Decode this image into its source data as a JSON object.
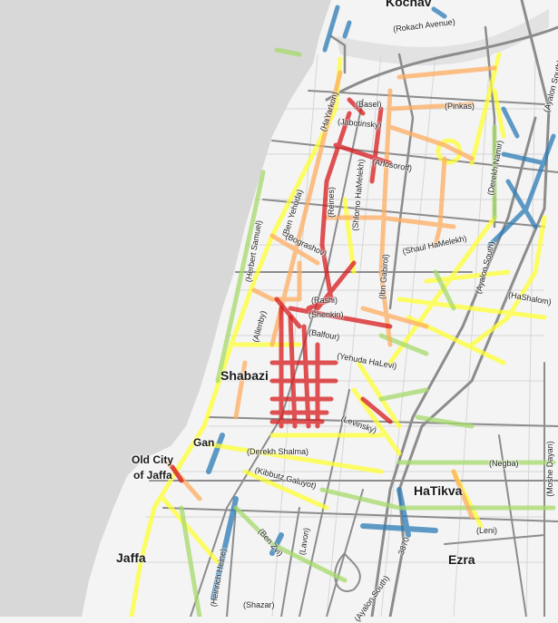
{
  "map": {
    "colors": {
      "sea": "#d8d8d8",
      "land": "#f4f4f4",
      "road": "#8c8c8c",
      "congestion_severe": "#d7191c",
      "congestion_heavy": "#fdae61",
      "congestion_moderate": "#ffff33",
      "congestion_light": "#a6d96a",
      "free_flow": "#2c7bb6"
    },
    "neighborhoods": {
      "kochav": "Kochav",
      "shabazi": "Shabazi",
      "gan": "Gan",
      "old_city_1": "Old City",
      "old_city_2": "of Jaffa",
      "hatikva": "HaTikva",
      "jaffa": "Jaffa",
      "ezra": "Ezra"
    },
    "streets": {
      "rokach": "(Rokach Avenue)",
      "hayarkon": "(HaYarkon)",
      "pinkas": "(Pinkas)",
      "basel": "(Basel)",
      "jabotinsky": "(Jabotinsky)",
      "arlosoroff": "(Arlosoroff)",
      "ayalon_south_1": "(Ayalon South)",
      "derekh_namir": "(Derekh Namir)",
      "ben_yehuda": "(Ben Yehuda)",
      "reines": "(Reines)",
      "shlomo_hamelekh": "(Shlomo HaMelekh)",
      "herbert_samuel": "(Herbert Samuel)",
      "bograshov": "(Bograshov)",
      "ibn_gabirol": "(Ibn Gabirol)",
      "shaul_hamelekh": "(Shaul HaMelekh)",
      "ayalon_south_2": "(Ayalon South)",
      "hashalom": "(HaShalom)",
      "rashi": "(Rashi)",
      "shenkin": "(Shenkin)",
      "balfour": "(Balfour)",
      "allenby": "(Allenby)",
      "yehuda_halevi": "(Yehuda HaLevi)",
      "levinsky": "(Levinsky)",
      "derekh_shalma": "(Derekh Shalma)",
      "kibbutz_galuyot": "(Kibbutz Galuyot)",
      "negba": "(Negba)",
      "moshe_dayan": "(Moshe Dayan)",
      "leni": "(Leni)",
      "ben_zvi": "(Ben Zvi)",
      "lavon": "(Lavon)",
      "heinrich_heine": "(Heinrich Heine)",
      "shazar": "(Shazar)",
      "route_3870": "3870",
      "ayalon_south_3": "(Ayalon South)"
    }
  }
}
